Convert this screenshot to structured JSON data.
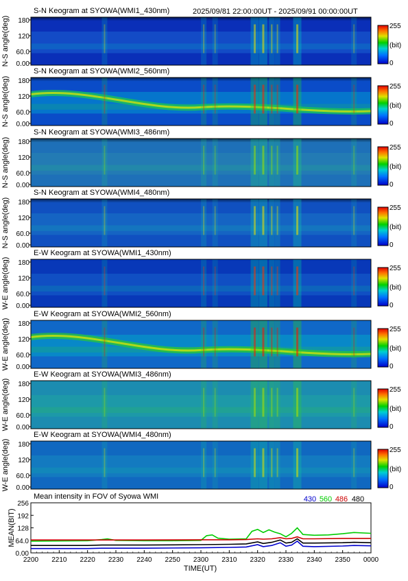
{
  "header": {
    "time_range": "2025/09/81 22:00:00UT - 2025/09/91 00:00:00UT"
  },
  "keograms": [
    {
      "title": "S-N Keogram at SYOWA(WMI1_430nm)",
      "ylabel": "N-S angle(deg)",
      "ticks": [
        "180",
        "120",
        "60.0",
        "0.00"
      ],
      "cbar_ticks": [
        "255",
        "(bit)",
        "0"
      ]
    },
    {
      "title": "S-N Keogram at SYOWA(WMI2_560nm)",
      "ylabel": "N-S angle(deg)",
      "ticks": [
        "180",
        "120",
        "60.0",
        "0.00"
      ],
      "cbar_ticks": [
        "255",
        "(bit)",
        "0"
      ]
    },
    {
      "title": "S-N Keogram at SYOWA(WMI3_486nm)",
      "ylabel": "N-S angle(deg)",
      "ticks": [
        "180",
        "120",
        "60.0",
        "0.00"
      ],
      "cbar_ticks": [
        "255",
        "(bit)",
        "0"
      ]
    },
    {
      "title": "S-N Keogram at SYOWA(WMI4_480nm)",
      "ylabel": "N-S angle(deg)",
      "ticks": [
        "180",
        "120",
        "60.0",
        "0.00"
      ],
      "cbar_ticks": [
        "255",
        "(bit)",
        "0"
      ]
    },
    {
      "title": "E-W Keogram at SYOWA(WMI1_430nm)",
      "ylabel": "W-E angle(deg)",
      "ticks": [
        "180",
        "120",
        "60.0",
        "0.00"
      ],
      "cbar_ticks": [
        "255",
        "(bit)",
        "0"
      ]
    },
    {
      "title": "E-W Keogram at SYOWA(WMI2_560nm)",
      "ylabel": "W-E angle(deg)",
      "ticks": [
        "180",
        "120",
        "60.0",
        "0.00"
      ],
      "cbar_ticks": [
        "255",
        "(bit)",
        "0"
      ]
    },
    {
      "title": "E-W Keogram at SYOWA(WMI3_486nm)",
      "ylabel": "W-E angle(deg)",
      "ticks": [
        "180",
        "120",
        "60.0",
        "0.00"
      ],
      "cbar_ticks": [
        "255",
        "(bit)",
        "0"
      ]
    },
    {
      "title": "E-W Keogram at SYOWA(WMI4_480nm)",
      "ylabel": "W-E angle(deg)",
      "ticks": [
        "180",
        "120",
        "60.0",
        "0.00"
      ],
      "cbar_ticks": [
        "255",
        "(bit)",
        "0"
      ]
    }
  ],
  "chart_data": {
    "type": "line",
    "title": "Mean intensity in FOV of Syowa WMI",
    "xlabel": "TIME(UT)",
    "ylabel": "MEAN(BIT)",
    "y_ticks": [
      "256",
      "192",
      "128",
      "64.0",
      "0.00"
    ],
    "ylim": [
      0,
      256
    ],
    "x_ticks": [
      "2200",
      "2210",
      "2220",
      "2230",
      "2240",
      "2250",
      "2300",
      "2310",
      "2320",
      "2330",
      "2340",
      "2350",
      "0000"
    ],
    "x_minutes": [
      0,
      10,
      20,
      30,
      40,
      50,
      60,
      70,
      80,
      90,
      100,
      110,
      120
    ],
    "series": [
      {
        "name": "430",
        "color": "#0000cc",
        "x": [
          0,
          20,
          25,
          40,
          60,
          70,
          76,
          80,
          82,
          85,
          88,
          90,
          92,
          94,
          96,
          100,
          110,
          114,
          120
        ],
        "y": [
          22,
          22,
          24,
          24,
          26,
          28,
          30,
          42,
          32,
          38,
          52,
          34,
          40,
          60,
          34,
          32,
          35,
          38,
          36
        ]
      },
      {
        "name": "560",
        "color": "#00cc00",
        "x": [
          0,
          20,
          25,
          27,
          30,
          40,
          50,
          60,
          62,
          64,
          66,
          70,
          76,
          78,
          80,
          82,
          84,
          86,
          88,
          90,
          92,
          94,
          96,
          100,
          105,
          110,
          114,
          120
        ],
        "y": [
          60,
          62,
          68,
          72,
          64,
          62,
          62,
          64,
          88,
          92,
          75,
          70,
          72,
          110,
          120,
          104,
          118,
          106,
          98,
          82,
          100,
          128,
          94,
          90,
          92,
          98,
          104,
          100
        ]
      },
      {
        "name": "486",
        "color": "#cc0000",
        "x": [
          0,
          20,
          40,
          60,
          70,
          76,
          80,
          82,
          85,
          88,
          90,
          92,
          94,
          96,
          100,
          110,
          120
        ],
        "y": [
          66,
          66,
          66,
          67,
          67,
          68,
          72,
          70,
          72,
          78,
          72,
          74,
          82,
          72,
          72,
          74,
          74
        ]
      },
      {
        "name": "480",
        "color": "#000000",
        "x": [
          0,
          20,
          25,
          40,
          60,
          70,
          76,
          80,
          82,
          85,
          88,
          90,
          92,
          94,
          96,
          100,
          110,
          114,
          120
        ],
        "y": [
          38,
          38,
          40,
          40,
          42,
          44,
          46,
          56,
          48,
          54,
          66,
          50,
          54,
          72,
          50,
          50,
          52,
          54,
          52
        ]
      }
    ]
  }
}
